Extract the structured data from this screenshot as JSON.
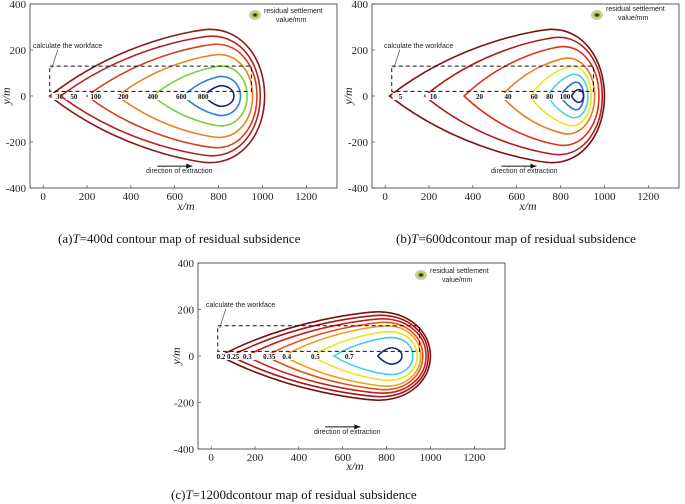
{
  "panels": [
    {
      "id": "a",
      "caption_prefix": "(a)",
      "caption_var": "T",
      "caption_rest": "=400d contour map of residual subsidence",
      "xlabel": "x/m",
      "ylabel": "y/m",
      "workface_label": "calculate the workface",
      "direction_label": "direction of extraction",
      "legend_label_1": "residual settlement",
      "legend_label_2": "value/mm"
    },
    {
      "id": "b",
      "caption_prefix": "(b)",
      "caption_var": "T",
      "caption_rest": "=600dcontour map of residual subsidence",
      "xlabel": "x/m",
      "ylabel": "y/m",
      "workface_label": "calculate the workface",
      "direction_label": "direction of extraction",
      "legend_label_1": "residual settlement",
      "legend_label_2": "value/mm"
    },
    {
      "id": "c",
      "caption_prefix": "(c)",
      "caption_var": "T",
      "caption_rest": "=1200dcontour map of residual subsidence",
      "xlabel": "x/m",
      "ylabel": "y/m",
      "workface_label": "calculate the workface",
      "direction_label": "direction of extraction",
      "legend_label_1": "residual settlement",
      "legend_label_2": "value/mm"
    }
  ],
  "chart_data": [
    {
      "type": "contour",
      "title": "(a)T=400d contour map of residual subsidence",
      "xlabel": "x/m",
      "ylabel": "y/m",
      "xlim": [
        -60,
        1340
      ],
      "ylim": [
        -400,
        400
      ],
      "xticks": [
        0,
        200,
        400,
        600,
        800,
        1000,
        1200
      ],
      "yticks": [
        -400,
        -200,
        0,
        200,
        400
      ],
      "workface": {
        "x": [
          30,
          950
        ],
        "y": [
          20,
          130
        ]
      },
      "direction_arrow": {
        "x": [
          520,
          680
        ],
        "y": -305
      },
      "levels": [
        {
          "label": "30",
          "left": 30,
          "right": 1010,
          "cx": 760,
          "h": 290,
          "color": "#8B1A1A",
          "label_x": 75
        },
        {
          "label": "50",
          "left": 80,
          "right": 990,
          "cx": 770,
          "h": 260,
          "color": "#B22222",
          "label_x": 140
        },
        {
          "label": "100",
          "left": 200,
          "right": 975,
          "cx": 790,
          "h": 225,
          "color": "#D2401A",
          "label_x": 240
        },
        {
          "label": "200",
          "left": 340,
          "right": 955,
          "cx": 800,
          "h": 180,
          "color": "#E8821E",
          "label_x": 365
        },
        {
          "label": "400",
          "left": 500,
          "right": 930,
          "cx": 810,
          "h": 130,
          "color": "#7FCF3A",
          "label_x": 500
        },
        {
          "label": "600",
          "left": 640,
          "right": 900,
          "cx": 810,
          "h": 85,
          "color": "#2A86D8",
          "label_x": 630
        },
        {
          "label": "800",
          "left": 735,
          "right": 870,
          "cx": 810,
          "h": 45,
          "color": "#1A237E",
          "label_x": 730
        }
      ]
    },
    {
      "type": "contour",
      "title": "(b)T=600dcontour map of residual subsidence",
      "xlabel": "x/m",
      "ylabel": "y/m",
      "xlim": [
        -60,
        1340
      ],
      "ylim": [
        -400,
        400
      ],
      "xticks": [
        0,
        200,
        400,
        600,
        800,
        1000,
        1200
      ],
      "yticks": [
        -400,
        -200,
        0,
        200,
        400
      ],
      "workface": {
        "x": [
          30,
          950
        ],
        "y": [
          20,
          130
        ]
      },
      "direction_arrow": {
        "x": [
          530,
          690
        ],
        "y": -305
      },
      "levels": [
        {
          "label": "5",
          "left": 20,
          "right": 1000,
          "cx": 760,
          "h": 290,
          "color": "#7A1010",
          "label_x": 70
        },
        {
          "label": "10",
          "left": 180,
          "right": 990,
          "cx": 790,
          "h": 255,
          "color": "#B01E1E",
          "label_x": 220
        },
        {
          "label": "20",
          "left": 360,
          "right": 975,
          "cx": 810,
          "h": 215,
          "color": "#E0301C",
          "label_x": 430
        },
        {
          "label": "40",
          "left": 530,
          "right": 955,
          "cx": 830,
          "h": 165,
          "color": "#F07A1A",
          "label_x": 560
        },
        {
          "label": "60",
          "left": 660,
          "right": 940,
          "cx": 850,
          "h": 130,
          "color": "#F2E21E",
          "label_x": 680
        },
        {
          "label": "80",
          "left": 740,
          "right": 925,
          "cx": 860,
          "h": 95,
          "color": "#4FD0D6",
          "label_x": 750
        },
        {
          "label": "100",
          "left": 800,
          "right": 905,
          "cx": 870,
          "h": 60,
          "color": "#2F6FD0",
          "label_x": 820
        },
        {
          "label": "",
          "left": 850,
          "right": 905,
          "cx": 880,
          "h": 28,
          "color": "#1A237E",
          "label_x": 0
        }
      ]
    },
    {
      "type": "contour",
      "title": "(c)T=1200dcontour map of residual subsidence",
      "xlabel": "x/m",
      "ylabel": "y/m",
      "xlim": [
        -60,
        1340
      ],
      "ylim": [
        -400,
        400
      ],
      "xticks": [
        0,
        200,
        400,
        600,
        800,
        1000,
        1200
      ],
      "yticks": [
        -400,
        -200,
        0,
        200,
        400
      ],
      "workface": {
        "x": [
          30,
          950
        ],
        "y": [
          20,
          130
        ]
      },
      "direction_arrow": {
        "x": [
          520,
          680
        ],
        "y": -305
      },
      "levels": [
        {
          "label": "0.2",
          "left": 40,
          "right": 1000,
          "cx": 760,
          "h": 190,
          "color": "#7A1010",
          "label_x": 45
        },
        {
          "label": "0.25",
          "left": 90,
          "right": 990,
          "cx": 770,
          "h": 175,
          "color": "#A01818",
          "label_x": 100
        },
        {
          "label": "0.3",
          "left": 160,
          "right": 980,
          "cx": 780,
          "h": 160,
          "color": "#C8201C",
          "label_x": 165
        },
        {
          "label": "0.35",
          "left": 250,
          "right": 965,
          "cx": 790,
          "h": 145,
          "color": "#E8501A",
          "label_x": 265
        },
        {
          "label": "0.4",
          "left": 330,
          "right": 955,
          "cx": 800,
          "h": 130,
          "color": "#F0A01A",
          "label_x": 345
        },
        {
          "label": "0.5",
          "left": 460,
          "right": 940,
          "cx": 810,
          "h": 105,
          "color": "#EEE21E",
          "label_x": 475
        },
        {
          "label": "0.7",
          "left": 560,
          "right": 920,
          "cx": 820,
          "h": 80,
          "color": "#3FD0E0",
          "label_x": 630
        },
        {
          "label": "",
          "left": 760,
          "right": 870,
          "cx": 820,
          "h": 35,
          "color": "#1A237E",
          "label_x": 0
        }
      ]
    }
  ]
}
